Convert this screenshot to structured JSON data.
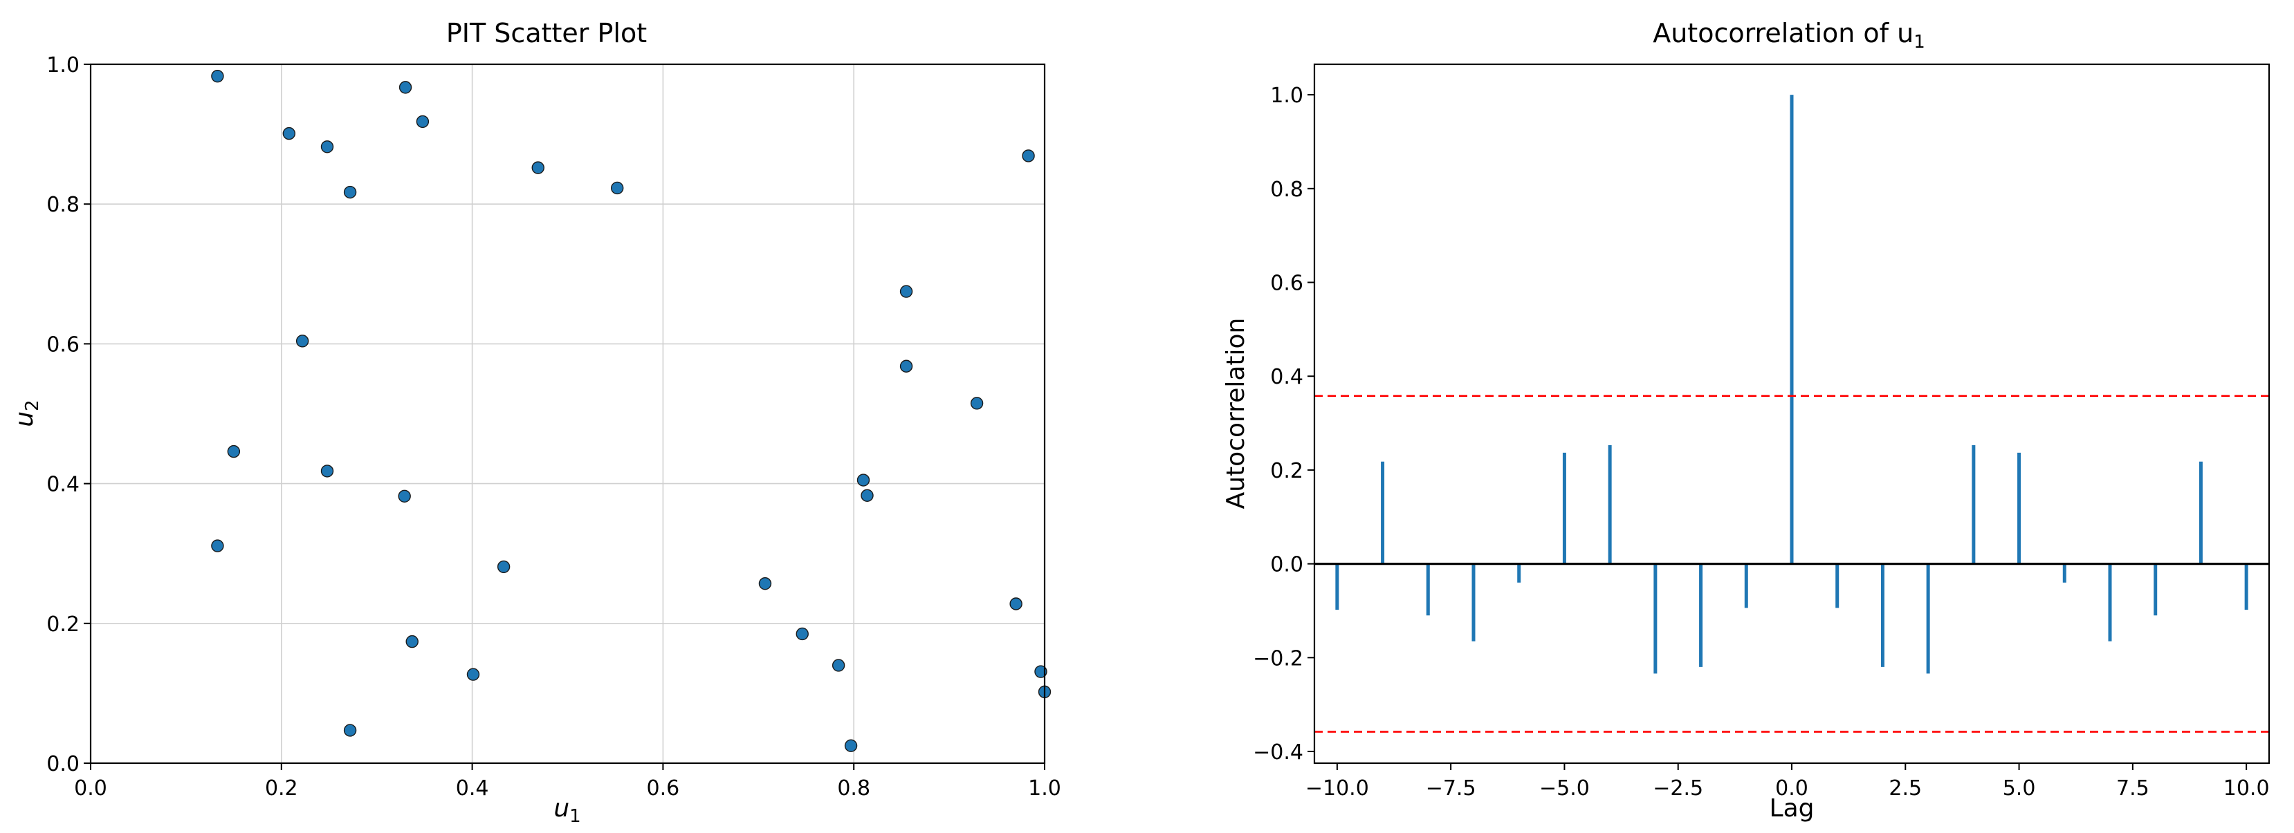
{
  "chart_data": [
    {
      "type": "scatter",
      "title": "PIT Scatter Plot",
      "xlabel": "u",
      "xlabel_sub": "1",
      "ylabel": "u",
      "ylabel_sub": "2",
      "xlim": [
        0.0,
        1.0
      ],
      "ylim": [
        0.0,
        1.0
      ],
      "xticks": [
        0.0,
        0.2,
        0.4,
        0.6,
        0.8,
        1.0
      ],
      "yticks": [
        0.0,
        0.2,
        0.4,
        0.6,
        0.8,
        1.0
      ],
      "xtick_labels": [
        "0.0",
        "0.2",
        "0.4",
        "0.6",
        "0.8",
        "1.0"
      ],
      "ytick_labels": [
        "0.0",
        "0.2",
        "0.4",
        "0.6",
        "0.8",
        "1.0"
      ],
      "grid": true,
      "marker_color": "#1f77b4",
      "points": [
        {
          "x": 0.133,
          "y": 0.983
        },
        {
          "x": 0.33,
          "y": 0.967
        },
        {
          "x": 0.348,
          "y": 0.918
        },
        {
          "x": 0.208,
          "y": 0.901
        },
        {
          "x": 0.248,
          "y": 0.882
        },
        {
          "x": 0.983,
          "y": 0.869
        },
        {
          "x": 0.469,
          "y": 0.852
        },
        {
          "x": 0.552,
          "y": 0.823
        },
        {
          "x": 0.272,
          "y": 0.817
        },
        {
          "x": 0.855,
          "y": 0.675
        },
        {
          "x": 0.222,
          "y": 0.604
        },
        {
          "x": 0.855,
          "y": 0.568
        },
        {
          "x": 0.929,
          "y": 0.515
        },
        {
          "x": 0.15,
          "y": 0.446
        },
        {
          "x": 0.248,
          "y": 0.418
        },
        {
          "x": 0.81,
          "y": 0.405
        },
        {
          "x": 0.814,
          "y": 0.383
        },
        {
          "x": 0.329,
          "y": 0.382
        },
        {
          "x": 0.133,
          "y": 0.311
        },
        {
          "x": 0.433,
          "y": 0.281
        },
        {
          "x": 0.707,
          "y": 0.257
        },
        {
          "x": 0.97,
          "y": 0.228
        },
        {
          "x": 0.746,
          "y": 0.185
        },
        {
          "x": 0.337,
          "y": 0.174
        },
        {
          "x": 0.784,
          "y": 0.14
        },
        {
          "x": 0.996,
          "y": 0.131
        },
        {
          "x": 0.401,
          "y": 0.127
        },
        {
          "x": 1.0,
          "y": 0.102
        },
        {
          "x": 0.272,
          "y": 0.047
        },
        {
          "x": 0.797,
          "y": 0.025
        }
      ]
    },
    {
      "type": "bar",
      "title": "Autocorrelation of u",
      "title_sub": "1",
      "xlabel": "Lag",
      "ylabel": "Autocorrelation",
      "xlim": [
        -10.5,
        10.5
      ],
      "ylim": [
        -0.425,
        1.065
      ],
      "xticks": [
        -10.0,
        -7.5,
        -5.0,
        -2.5,
        0.0,
        2.5,
        5.0,
        7.5,
        10.0
      ],
      "yticks": [
        -0.4,
        -0.2,
        0.0,
        0.2,
        0.4,
        0.6,
        0.8,
        1.0
      ],
      "xtick_labels": [
        "−10.0",
        "−7.5",
        "−5.0",
        "−2.5",
        "0.0",
        "2.5",
        "5.0",
        "7.5",
        "10.0"
      ],
      "ytick_labels": [
        "−0.4",
        "−0.2",
        "0.0",
        "0.2",
        "0.4",
        "0.6",
        "0.8",
        "1.0"
      ],
      "grid": false,
      "bar_color": "#1f77b4",
      "zero_line_color": "#000000",
      "confidence_bound": 0.358,
      "confidence_color": "#ff0000",
      "x": [
        -10,
        -9,
        -8,
        -7,
        -6,
        -5,
        -4,
        -3,
        -2,
        -1,
        0,
        1,
        2,
        3,
        4,
        5,
        6,
        7,
        8,
        9,
        10
      ],
      "values": [
        -0.098,
        0.218,
        -0.11,
        -0.165,
        -0.04,
        0.237,
        0.253,
        -0.234,
        -0.22,
        -0.094,
        1.0,
        -0.094,
        -0.22,
        -0.234,
        0.253,
        0.237,
        -0.04,
        -0.165,
        -0.11,
        0.218,
        -0.098
      ]
    }
  ]
}
